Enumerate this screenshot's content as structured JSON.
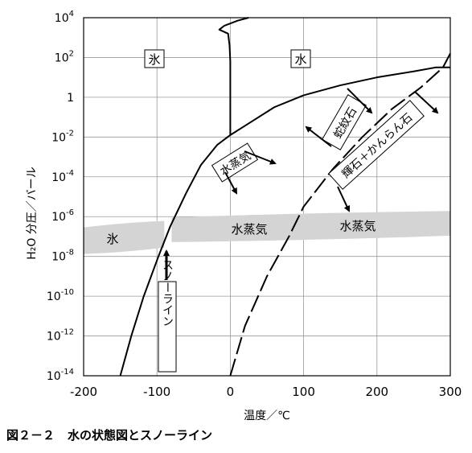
{
  "chart_data": {
    "type": "line",
    "xlabel": "温度／℃",
    "ylabel": "H₂O 分圧／バール",
    "x_ticks": [
      "-200",
      "-100",
      "0",
      "100",
      "200",
      "300"
    ],
    "y_ticks": [
      {
        "base": "10",
        "exp": "4"
      },
      {
        "base": "10",
        "exp": "2"
      },
      {
        "base": "1",
        "exp": ""
      },
      {
        "base": "10",
        "exp": "-2"
      },
      {
        "base": "10",
        "exp": "-4"
      },
      {
        "base": "10",
        "exp": "-6"
      },
      {
        "base": "10",
        "exp": "-8"
      },
      {
        "base": "10",
        "exp": "-10"
      },
      {
        "base": "10",
        "exp": "-12"
      },
      {
        "base": "10",
        "exp": "-14"
      }
    ],
    "xlim": [
      -200,
      300
    ],
    "ylim_log10": [
      -14,
      4
    ],
    "y_scale": "log",
    "grid": true,
    "series": [
      {
        "style": "solid",
        "points": [
          [
            -150,
            -14
          ],
          [
            -135,
            -12
          ],
          [
            -118,
            -10
          ],
          [
            -98,
            -8
          ],
          [
            -82,
            -6.5
          ],
          [
            -60,
            -4.8
          ],
          [
            -40,
            -3.4
          ],
          [
            -18,
            -2.4
          ],
          [
            0,
            -1.9
          ],
          [
            30,
            -1.2
          ],
          [
            60,
            -0.5
          ],
          [
            100,
            0.1
          ],
          [
            150,
            0.6
          ],
          [
            200,
            1.0
          ],
          [
            250,
            1.3
          ],
          [
            280,
            1.5
          ],
          [
            300,
            1.5
          ]
        ]
      },
      {
        "style": "solid",
        "points": [
          [
            0,
            -1.9
          ],
          [
            0,
            1.8
          ],
          [
            -1,
            2.6
          ],
          [
            -3,
            3.2
          ],
          [
            -15,
            3.4
          ],
          [
            -8,
            3.6
          ],
          [
            10,
            3.85
          ],
          [
            25,
            4.0
          ]
        ]
      },
      {
        "style": "dashed",
        "points": [
          [
            0,
            -14
          ],
          [
            20,
            -11.5
          ],
          [
            50,
            -9
          ],
          [
            80,
            -7
          ],
          [
            100,
            -5.5
          ],
          [
            140,
            -3.6
          ],
          [
            180,
            -2.0
          ],
          [
            220,
            -0.6
          ],
          [
            260,
            0.5
          ],
          [
            290,
            1.5
          ],
          [
            300,
            2.2
          ]
        ]
      }
    ],
    "bands": [
      {
        "label": "氷",
        "x": [
          -200,
          -90
        ],
        "y_log10": [
          -7.8,
          -6.3
        ]
      },
      {
        "label": "水蒸気",
        "x": [
          -80,
          300
        ],
        "y_log10": [
          -7.2,
          -5.8
        ]
      }
    ],
    "annotations": {
      "ice_box_left": "氷",
      "water_box": "水",
      "vapor_box": "水蒸気",
      "serpentine_box": "蛇紋石",
      "brucite_box": "輝石＋かんらん石",
      "band_ice": "氷",
      "band_vapor_1": "水蒸気",
      "band_vapor_2": "水蒸気",
      "snowline_box": "スノーライン"
    }
  },
  "caption": {
    "number": "図２－２",
    "title": "水の状態図とスノーライン"
  }
}
